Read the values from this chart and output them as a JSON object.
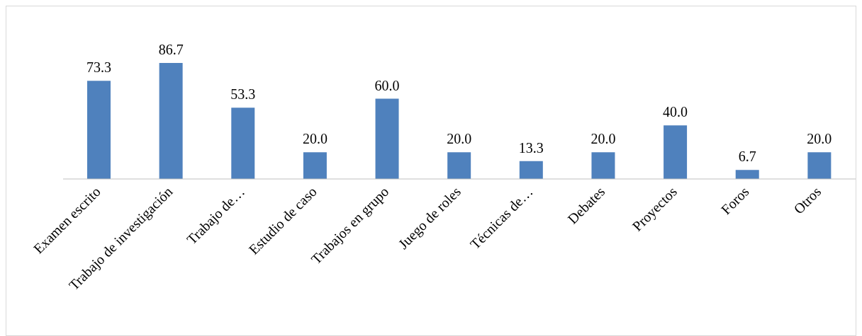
{
  "chart_data": {
    "type": "bar",
    "categories": [
      "Examen escrito",
      "Trabajo de investigación",
      "Trabajo de…",
      "Estudio de caso",
      "Trabajos en grupo",
      "Juego de roles",
      "Técnicas de…",
      "Debates",
      "Proyectos",
      "Foros",
      "Otros"
    ],
    "values": [
      73.3,
      86.7,
      53.3,
      20.0,
      60.0,
      20.0,
      13.3,
      20.0,
      40.0,
      6.7,
      20.0
    ],
    "value_labels": [
      "73.3",
      "86.7",
      "53.3",
      "20.0",
      "60.0",
      "20.0",
      "13.3",
      "20.0",
      "40.0",
      "6.7",
      "20.0"
    ],
    "color": "#4f81bd",
    "grid": false,
    "legend": false
  }
}
